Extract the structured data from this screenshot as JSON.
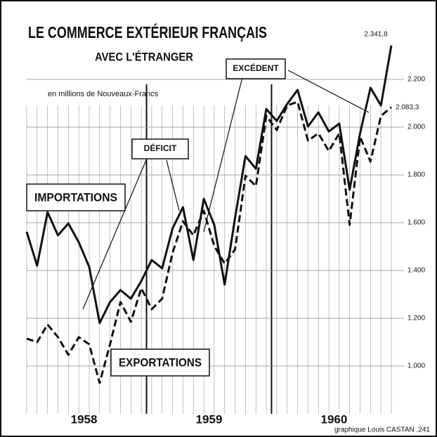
{
  "chart_data": {
    "type": "line",
    "title": "LE COMMERCE EXTÉRIEUR FRANÇAIS",
    "subtitle": "AVEC L'ÉTRANGER",
    "unit_note": "en millions de Nouveaux-Francs",
    "credit": "graphique Louis CASTAN .241",
    "annotations": [
      "DÉFICIT",
      "EXCÉDENT"
    ],
    "year_labels": [
      "1958",
      "1959",
      "1960"
    ],
    "categories": [
      null,
      null,
      null,
      null,
      null,
      null,
      null,
      null,
      null,
      null,
      null,
      null,
      null,
      null,
      null,
      null,
      null,
      null,
      null,
      null,
      null,
      null,
      null,
      null,
      null,
      null,
      null,
      null,
      null,
      null,
      null,
      null,
      null,
      null,
      null,
      null
    ],
    "series": [
      {
        "name": "IMPORTATIONS",
        "color": "#111111",
        "dash": false,
        "values": [
          1562,
          1420,
          1644,
          1547,
          1597,
          1518,
          1415,
          1180,
          1268,
          1318,
          1282,
          1356,
          1444,
          1409,
          1576,
          1665,
          1444,
          1700,
          1591,
          1341,
          1621,
          1879,
          1826,
          2076,
          2026,
          2097,
          2156,
          2003,
          2062,
          1982,
          2015,
          1738,
          1974,
          2165,
          2091,
          2341.8
        ],
        "value_labels": [
          null,
          null,
          null,
          null,
          null,
          null,
          null,
          null,
          null,
          null,
          null,
          null,
          null,
          null,
          null,
          null,
          null,
          null,
          null,
          null,
          null,
          null,
          null,
          null,
          null,
          null,
          null,
          null,
          null,
          null,
          null,
          null,
          null,
          null,
          null,
          "2.341,8"
        ]
      },
      {
        "name": "EXPORTATIONS",
        "color": "#111111",
        "dash": true,
        "values": [
          1115,
          1100,
          1174,
          1121,
          1047,
          1121,
          1091,
          929,
          1091,
          1268,
          1185,
          1326,
          1238,
          1282,
          1474,
          1606,
          1547,
          1650,
          1503,
          1429,
          1488,
          1797,
          1753,
          2047,
          1988,
          2091,
          2106,
          1944,
          1974,
          1900,
          1974,
          1591,
          1959,
          1856,
          2047,
          2083.3
        ],
        "value_labels": [
          null,
          null,
          null,
          null,
          null,
          null,
          null,
          null,
          null,
          null,
          null,
          null,
          null,
          null,
          null,
          null,
          null,
          null,
          null,
          null,
          null,
          null,
          null,
          null,
          null,
          null,
          null,
          null,
          null,
          null,
          null,
          null,
          null,
          null,
          null,
          "2.083,3"
        ]
      }
    ],
    "ylim": [
      800,
      2400
    ],
    "yticks": [
      {
        "value": 1000,
        "label": "1.000"
      },
      {
        "value": 1200,
        "label": "1.200"
      },
      {
        "value": 1400,
        "label": "1.400"
      },
      {
        "value": 1600,
        "label": "1.600"
      },
      {
        "value": 1800,
        "label": "1.800"
      },
      {
        "value": 2000,
        "label": "2.000"
      },
      {
        "value": 2200,
        "label": "2.200"
      }
    ],
    "grid": true
  }
}
